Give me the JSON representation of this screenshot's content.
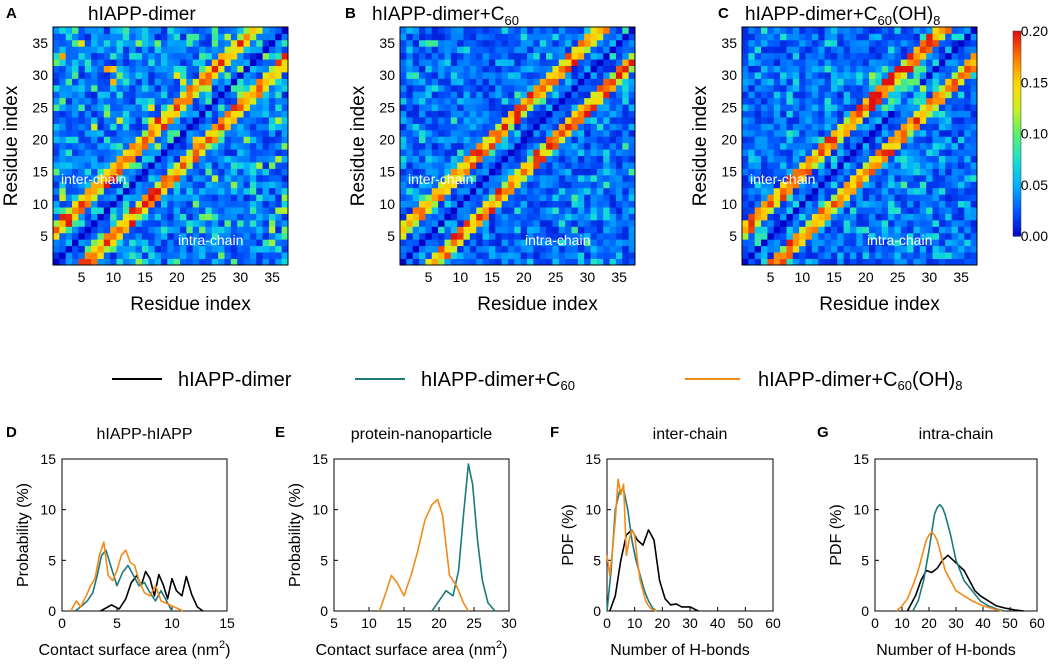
{
  "colors": {
    "dimer": "#000000",
    "c60": "#1b7a7a",
    "c60oh": "#f28a1a",
    "cmap": [
      "#0000c8",
      "#0055ff",
      "#00b0ff",
      "#18e0d0",
      "#58f070",
      "#c8f020",
      "#ffd800",
      "#ff7a00",
      "#e01010"
    ]
  },
  "legend": {
    "dimer": "hIAPP-dimer",
    "c60": "hIAPP-dimer+C",
    "c60_sub": "60",
    "c60oh": "hIAPP-dimer+C",
    "c60oh_sub": "60",
    "c60oh_tail": "(OH)",
    "c60oh_tail_sub": "8"
  },
  "colorbar": {
    "ticks": [
      "0.20",
      "0.15",
      "0.10",
      "0.05",
      "0.00"
    ],
    "min": 0.0,
    "max": 0.2
  },
  "heatmap_axes": {
    "xlabel": "Residue index",
    "ylabel": "Residue index",
    "ticks": [
      "5",
      "10",
      "15",
      "20",
      "25",
      "30",
      "35"
    ],
    "label_inter": "inter-chain",
    "label_intra": "intra-chain"
  },
  "chart_data": [
    {
      "type": "heatmap",
      "panel": "A",
      "title": "hIAPP-dimer",
      "grid_size": 37,
      "xlabel": "Residue index",
      "ylabel": "Residue index",
      "xlim": [
        1,
        37
      ],
      "ylim": [
        1,
        37
      ],
      "value_range": [
        0.0,
        0.2
      ],
      "annotations": [
        "inter-chain",
        "intra-chain"
      ]
    },
    {
      "type": "heatmap",
      "panel": "B",
      "title": "hIAPP-dimer+C",
      "title_sub": "60",
      "grid_size": 37,
      "xlabel": "Residue index",
      "ylabel": "Residue index",
      "xlim": [
        1,
        37
      ],
      "ylim": [
        1,
        37
      ],
      "value_range": [
        0.0,
        0.2
      ],
      "annotations": [
        "inter-chain",
        "intra-chain"
      ]
    },
    {
      "type": "heatmap",
      "panel": "C",
      "title": "hIAPP-dimer+C",
      "title_sub": "60",
      "title_tail": "(OH)",
      "title_tail_sub": "8",
      "grid_size": 37,
      "xlabel": "Residue index",
      "ylabel": "Residue index",
      "xlim": [
        1,
        37
      ],
      "ylim": [
        1,
        37
      ],
      "value_range": [
        0.0,
        0.2
      ],
      "annotations": [
        "inter-chain",
        "intra-chain"
      ]
    },
    {
      "type": "line",
      "panel": "D",
      "title": "hIAPP-hIAPP",
      "xlabel": "Contact surface area (nm",
      "xlabel_sup": "2",
      "xlabel_tail": ")",
      "ylabel": "Probability (%)",
      "xlim": [
        0,
        15
      ],
      "ylim": [
        0,
        15
      ],
      "xticks": [
        0,
        5,
        10,
        15
      ],
      "xtick_labels": [
        "0",
        "5",
        "10",
        "15"
      ],
      "yticks": [
        0,
        5,
        10,
        15
      ],
      "ytick_labels": [
        "0",
        "5",
        "10",
        "15"
      ],
      "series": [
        {
          "name": "hIAPP-dimer",
          "color": "black",
          "x": [
            3.5,
            4.5,
            5.2,
            5.8,
            6.3,
            6.8,
            7.2,
            7.6,
            8.0,
            8.4,
            8.8,
            9.2,
            9.6,
            10.0,
            10.4,
            10.9,
            11.3,
            11.8,
            12.3,
            12.8
          ],
          "y": [
            0,
            0.6,
            0.2,
            1.2,
            2.8,
            3.5,
            2.5,
            3.9,
            3.2,
            1.5,
            3.6,
            2.6,
            1.2,
            3.2,
            2.0,
            1.5,
            3.4,
            1.6,
            0.4,
            0
          ]
        },
        {
          "name": "hIAPP-dimer+C60",
          "color": "teal",
          "x": [
            1.2,
            1.8,
            2.3,
            2.8,
            3.2,
            3.6,
            4.0,
            4.5,
            5.0,
            5.5,
            6.0,
            6.5,
            7.0,
            7.5,
            8.0,
            8.5,
            9.0,
            9.5,
            10.0
          ],
          "y": [
            0,
            0.5,
            1.0,
            1.8,
            3.5,
            5.5,
            6.0,
            4.2,
            2.5,
            3.8,
            4.5,
            3.5,
            2.5,
            2.8,
            1.8,
            1.0,
            2.0,
            1.0,
            0
          ]
        },
        {
          "name": "hIAPP-dimer+C60(OH)8",
          "color": "orange",
          "x": [
            0.8,
            1.3,
            1.7,
            2.2,
            2.6,
            3.0,
            3.4,
            3.8,
            4.2,
            4.6,
            5.0,
            5.4,
            5.8,
            6.2,
            6.6,
            7.0,
            7.5,
            8.0,
            8.5,
            9.0,
            10.0,
            11.0
          ],
          "y": [
            0,
            1.0,
            0.4,
            1.5,
            2.5,
            3.2,
            5.5,
            6.8,
            3.5,
            3.0,
            4.0,
            5.5,
            6.0,
            4.8,
            4.5,
            3.0,
            1.8,
            1.5,
            2.5,
            1.0,
            0.5,
            0
          ]
        }
      ]
    },
    {
      "type": "line",
      "panel": "E",
      "title": "protein-nanoparticle",
      "xlabel": "Contact  surface  area (nm",
      "xlabel_sup": "2",
      "xlabel_tail": ")",
      "ylabel": "Probability (%)",
      "xlim": [
        5,
        30
      ],
      "ylim": [
        0,
        15
      ],
      "xticks": [
        5,
        10,
        15,
        20,
        25,
        30
      ],
      "xtick_labels": [
        "5",
        "10",
        "15",
        "20",
        "25",
        "30"
      ],
      "yticks": [
        0,
        5,
        10,
        15
      ],
      "ytick_labels": [
        "0",
        "5",
        "10",
        "15"
      ],
      "series": [
        {
          "name": "hIAPP-dimer+C60",
          "color": "teal",
          "x": [
            19,
            20,
            21,
            22,
            22.8,
            23.5,
            24.2,
            24.8,
            25.5,
            26.2,
            27,
            28
          ],
          "y": [
            0,
            1.0,
            2.0,
            1.5,
            4.0,
            9.5,
            14.5,
            12.5,
            7.0,
            3.0,
            0.8,
            0
          ]
        },
        {
          "name": "hIAPP-dimer+C60(OH)8",
          "color": "orange",
          "x": [
            11.5,
            12.5,
            13.2,
            14,
            15,
            16,
            17,
            18,
            19,
            19.8,
            20.5,
            21.5,
            22.5,
            23.5,
            24.2
          ],
          "y": [
            0,
            2.0,
            3.5,
            2.8,
            1.5,
            3.5,
            6.0,
            9.0,
            10.5,
            11.0,
            9.5,
            3.5,
            2.5,
            0.8,
            0
          ]
        }
      ]
    },
    {
      "type": "line",
      "panel": "F",
      "title": "inter-chain",
      "xlabel": "Number of H-bonds",
      "ylabel": "PDF (%)",
      "xlim": [
        0,
        60
      ],
      "ylim": [
        0,
        15
      ],
      "xticks": [
        0,
        10,
        20,
        30,
        40,
        50,
        60
      ],
      "xtick_labels": [
        "0",
        "10",
        "20",
        "30",
        "40",
        "50",
        "60"
      ],
      "yticks": [
        0,
        5,
        10,
        15
      ],
      "ytick_labels": [
        "0",
        "5",
        "10",
        "15"
      ],
      "series": [
        {
          "name": "hIAPP-dimer",
          "color": "black",
          "x": [
            1,
            3,
            5,
            7,
            9,
            11,
            13,
            15,
            17,
            19,
            21,
            23,
            25,
            27,
            30,
            33
          ],
          "y": [
            0,
            1.5,
            5.0,
            7.5,
            8.0,
            7.0,
            6.5,
            8.0,
            7.0,
            3.0,
            1.2,
            0.6,
            0.7,
            0.4,
            0.4,
            0
          ]
        },
        {
          "name": "hIAPP-dimer+C60",
          "color": "teal",
          "x": [
            0,
            1.5,
            3,
            4.5,
            6,
            7.5,
            9,
            10.5,
            12,
            13.5,
            15,
            16.5,
            18
          ],
          "y": [
            0,
            4.0,
            10.0,
            11.8,
            12.0,
            10.0,
            7.0,
            5.0,
            3.5,
            2.0,
            1.0,
            0.3,
            0
          ]
        },
        {
          "name": "hIAPP-dimer+C60(OH)8",
          "color": "orange",
          "x": [
            0,
            1,
            2,
            3,
            4,
            5,
            6,
            7,
            8,
            9,
            10,
            11,
            12,
            13,
            14,
            15,
            16,
            18
          ],
          "y": [
            5.5,
            3.5,
            6.0,
            9.0,
            13.0,
            11.5,
            12.5,
            5.5,
            7.0,
            8.0,
            7.5,
            5.0,
            3.0,
            2.0,
            1.0,
            0.5,
            0.2,
            0
          ]
        }
      ]
    },
    {
      "type": "line",
      "panel": "G",
      "title": "intra-chain",
      "xlabel": "Number of H-bonds",
      "ylabel": "PDF (%)",
      "xlim": [
        0,
        60
      ],
      "ylim": [
        0,
        15
      ],
      "xticks": [
        0,
        10,
        20,
        30,
        40,
        50,
        60
      ],
      "xtick_labels": [
        "0",
        "10",
        "20",
        "30",
        "40",
        "50",
        "60"
      ],
      "yticks": [
        0,
        5,
        10,
        15
      ],
      "ytick_labels": [
        "0",
        "5",
        "10",
        "15"
      ],
      "series": [
        {
          "name": "hIAPP-dimer",
          "color": "black",
          "x": [
            12,
            15,
            17,
            19,
            21,
            23,
            25,
            27,
            29,
            31,
            33,
            35,
            37,
            39,
            42,
            45,
            48,
            52,
            55
          ],
          "y": [
            0,
            1.5,
            3.0,
            4.0,
            3.8,
            4.2,
            5.0,
            5.5,
            5.0,
            4.5,
            4.0,
            3.0,
            2.0,
            1.5,
            1.0,
            0.5,
            0.3,
            0.1,
            0
          ]
        },
        {
          "name": "hIAPP-dimer+C60",
          "color": "teal",
          "x": [
            14,
            16,
            18,
            20,
            22,
            23,
            24,
            25,
            26,
            28,
            30,
            33,
            36,
            39,
            42,
            45,
            48
          ],
          "y": [
            0,
            1.0,
            3.0,
            6.0,
            9.5,
            10.2,
            10.5,
            10.2,
            9.5,
            7.5,
            5.0,
            3.0,
            2.0,
            1.0,
            0.5,
            0.2,
            0
          ]
        },
        {
          "name": "hIAPP-dimer+C60(OH)8",
          "color": "orange",
          "x": [
            8,
            10,
            12,
            14,
            16,
            18,
            19,
            20,
            21,
            22,
            23,
            24,
            26,
            28,
            30,
            33,
            36,
            40,
            44,
            47
          ],
          "y": [
            0,
            0.5,
            1.2,
            2.5,
            4.0,
            6.0,
            7.0,
            7.5,
            7.8,
            7.5,
            7.0,
            6.0,
            4.0,
            3.0,
            2.0,
            1.5,
            1.0,
            0.5,
            0.2,
            0
          ]
        }
      ]
    }
  ]
}
